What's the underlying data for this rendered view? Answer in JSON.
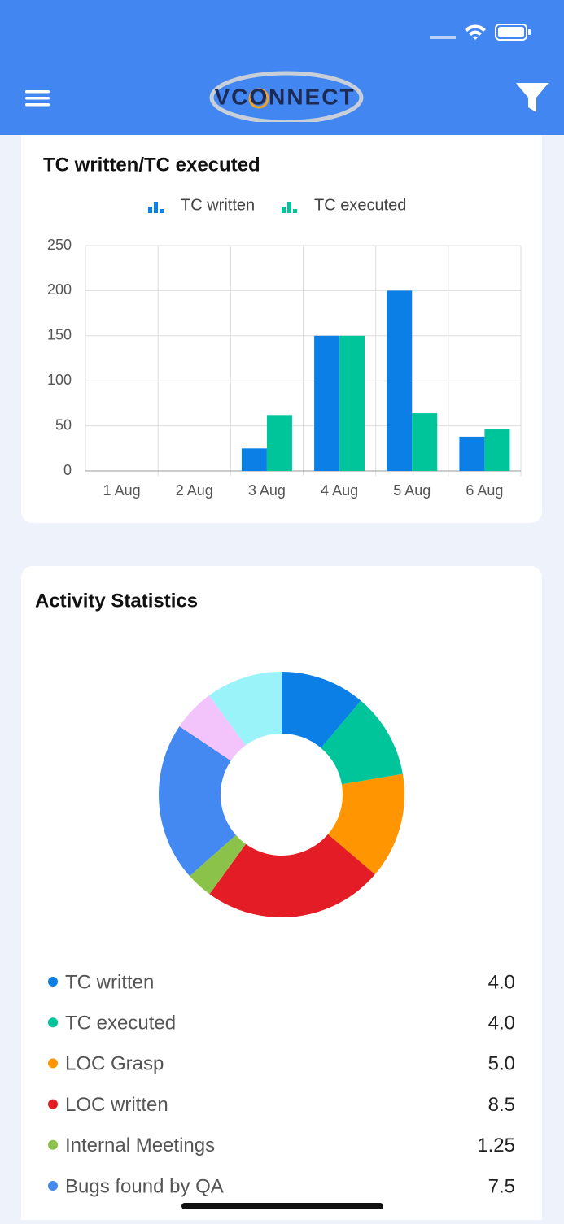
{
  "app": {
    "logo": "VCONNECT"
  },
  "chart_data": [
    {
      "type": "bar",
      "title": "TC written/TC executed",
      "categories": [
        "1 Aug",
        "2 Aug",
        "3 Aug",
        "4 Aug",
        "5 Aug",
        "6 Aug"
      ],
      "series": [
        {
          "name": "TC written",
          "color": "#0b7fe6",
          "values": [
            0,
            0,
            25,
            150,
            200,
            38
          ]
        },
        {
          "name": "TC executed",
          "color": "#00c49a",
          "values": [
            0,
            0,
            62,
            150,
            64,
            46
          ]
        }
      ],
      "ylim": [
        0,
        250
      ],
      "yticks": [
        0,
        50,
        100,
        150,
        200,
        250
      ],
      "grid": true
    },
    {
      "type": "donut",
      "title": "Activity Statistics",
      "categories": [
        "TC written",
        "TC executed",
        "LOC Grasp",
        "LOC written",
        "Internal Meetings",
        "Bugs found by QA",
        null,
        null
      ],
      "values": [
        4,
        4,
        5,
        8.5,
        1.25,
        7.5,
        2,
        3.6
      ],
      "value_labels": [
        "4.0",
        "4.0",
        "5.0",
        "8.5",
        "1.25",
        "7.5",
        null,
        null
      ],
      "colors": [
        "#0b7fe6",
        "#00c49a",
        "#ff9500",
        "#e31c25",
        "#8bc34a",
        "#4488f2",
        "#f3c4fb",
        "#9bf3fa"
      ]
    }
  ]
}
